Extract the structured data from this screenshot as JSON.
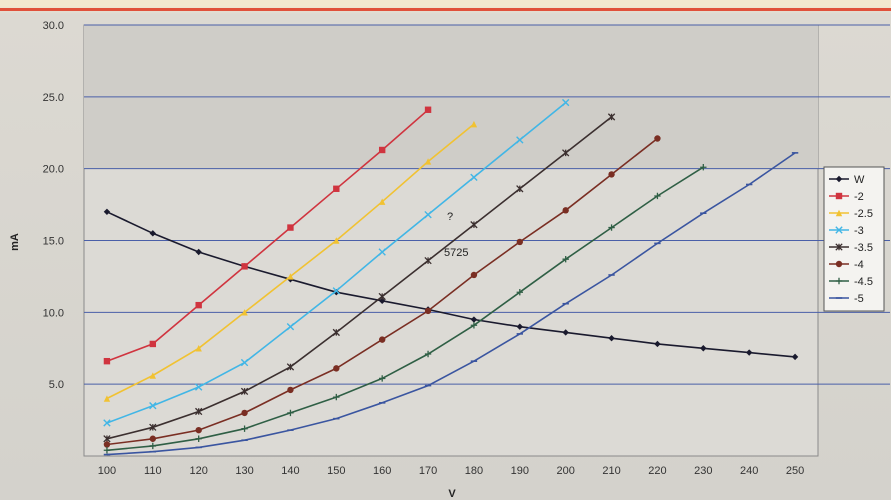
{
  "chart_data": {
    "type": "line",
    "xlabel": "V",
    "ylabel": "mA",
    "xlim": [
      95,
      255
    ],
    "ylim": [
      0,
      30
    ],
    "x_ticks": [
      "100",
      "110",
      "120",
      "130",
      "140",
      "150",
      "160",
      "170",
      "180",
      "190",
      "200",
      "210",
      "220",
      "230",
      "240",
      "250"
    ],
    "y_ticks": [
      "5.0",
      "10.0",
      "15.0",
      "20.0",
      "25.0",
      "30.0"
    ],
    "grid": "horizontal",
    "legend_position": "right",
    "annotations": [
      "?",
      "5725"
    ],
    "series": [
      {
        "name": "W",
        "color": "#1a1a2e",
        "marker": "diamond",
        "x": [
          100,
          110,
          120,
          130,
          140,
          150,
          160,
          170,
          180,
          190,
          200,
          210,
          220,
          230,
          240,
          250
        ],
        "y": [
          17.0,
          15.5,
          14.2,
          13.2,
          12.3,
          11.4,
          10.8,
          10.2,
          9.5,
          9.0,
          8.6,
          8.2,
          7.8,
          7.5,
          7.2,
          6.9
        ]
      },
      {
        "name": "-2",
        "color": "#d0343f",
        "marker": "square",
        "x": [
          100,
          110,
          120,
          130,
          140,
          150,
          160,
          170
        ],
        "y": [
          6.6,
          7.8,
          10.5,
          13.2,
          15.9,
          18.6,
          21.3,
          24.1
        ]
      },
      {
        "name": "-2.5",
        "color": "#f1c232",
        "marker": "triangle",
        "x": [
          100,
          110,
          120,
          130,
          140,
          150,
          160,
          170,
          180
        ],
        "y": [
          4.0,
          5.6,
          7.5,
          10.0,
          12.5,
          15.0,
          17.7,
          20.5,
          23.1
        ]
      },
      {
        "name": "-3",
        "color": "#41b6e6",
        "marker": "x",
        "x": [
          100,
          110,
          120,
          130,
          140,
          150,
          160,
          170,
          180,
          190,
          200
        ],
        "y": [
          2.3,
          3.5,
          4.8,
          6.5,
          9.0,
          11.5,
          14.2,
          16.8,
          19.4,
          22.0,
          24.6
        ]
      },
      {
        "name": "-3.5",
        "color": "#3b2f2f",
        "marker": "star",
        "x": [
          100,
          110,
          120,
          130,
          140,
          150,
          160,
          170,
          180,
          190,
          200,
          210
        ],
        "y": [
          1.2,
          2.0,
          3.1,
          4.5,
          6.2,
          8.6,
          11.1,
          13.6,
          16.1,
          18.6,
          21.1,
          23.6
        ]
      },
      {
        "name": "-4",
        "color": "#7a2e23",
        "marker": "circle",
        "x": [
          100,
          110,
          120,
          130,
          140,
          150,
          160,
          170,
          180,
          190,
          200,
          210,
          220
        ],
        "y": [
          0.8,
          1.2,
          1.8,
          3.0,
          4.6,
          6.1,
          8.1,
          10.1,
          12.6,
          14.9,
          17.1,
          19.6,
          22.1
        ]
      },
      {
        "name": "-4.5",
        "color": "#2f5f45",
        "marker": "plus",
        "x": [
          100,
          110,
          120,
          130,
          140,
          150,
          160,
          170,
          180,
          190,
          200,
          210,
          220,
          230
        ],
        "y": [
          0.4,
          0.7,
          1.2,
          1.9,
          3.0,
          4.1,
          5.4,
          7.1,
          9.1,
          11.4,
          13.7,
          15.9,
          18.1,
          20.1
        ]
      },
      {
        "name": "-5",
        "color": "#3a55a0",
        "marker": "dash",
        "x": [
          100,
          110,
          120,
          130,
          140,
          150,
          160,
          170,
          180,
          190,
          200,
          210,
          220,
          230,
          240,
          250
        ],
        "y": [
          0.1,
          0.3,
          0.6,
          1.1,
          1.8,
          2.6,
          3.7,
          4.9,
          6.6,
          8.5,
          10.6,
          12.6,
          14.8,
          16.9,
          18.9,
          21.1
        ]
      }
    ]
  }
}
